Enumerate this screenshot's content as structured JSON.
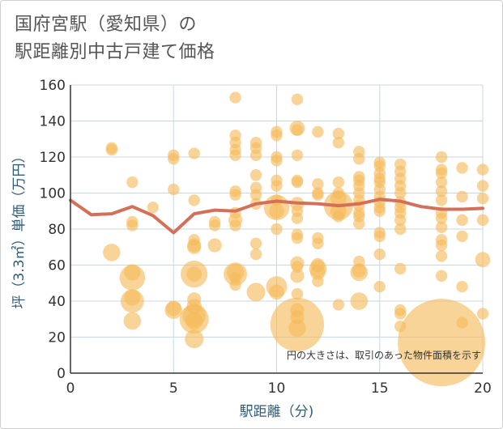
{
  "chart_data": {
    "type": "scatter",
    "title_line1": "国府宮駅（愛知県）の",
    "title_line2": "駅距離別中古戸建て価格",
    "xlabel": "駅距離（分)",
    "ylabel": "坪（3.3㎡）単価（万円）",
    "xlim": [
      0,
      20
    ],
    "ylim": [
      0,
      160
    ],
    "x_ticks": [
      0,
      5,
      10,
      15,
      20
    ],
    "y_ticks": [
      0,
      20,
      40,
      60,
      80,
      100,
      120,
      140,
      160
    ],
    "annotation": "円の大きさは、取引のあった物件面積を示す",
    "colors": {
      "bubble": "#f5b95a",
      "line": "#d4705a",
      "grid": "#c8d8e4",
      "plot_bg": "#ffffff"
    },
    "scatter_points": [
      {
        "x": 2,
        "y": 125,
        "s": 1
      },
      {
        "x": 2,
        "y": 124,
        "s": 1
      },
      {
        "x": 2,
        "y": 67,
        "s": 1.5
      },
      {
        "x": 3,
        "y": 106,
        "s": 1
      },
      {
        "x": 3,
        "y": 84,
        "s": 1
      },
      {
        "x": 3,
        "y": 82,
        "s": 1
      },
      {
        "x": 3,
        "y": 56,
        "s": 1.4
      },
      {
        "x": 3,
        "y": 53,
        "s": 2.2
      },
      {
        "x": 3,
        "y": 42,
        "s": 1.4
      },
      {
        "x": 3,
        "y": 40,
        "s": 2
      },
      {
        "x": 3,
        "y": 29,
        "s": 1.5
      },
      {
        "x": 4,
        "y": 92,
        "s": 1
      },
      {
        "x": 5,
        "y": 121,
        "s": 1
      },
      {
        "x": 5,
        "y": 119,
        "s": 1
      },
      {
        "x": 5,
        "y": 102,
        "s": 1
      },
      {
        "x": 5,
        "y": 36,
        "s": 1.3
      },
      {
        "x": 5,
        "y": 35,
        "s": 1.5
      },
      {
        "x": 6,
        "y": 122,
        "s": 1
      },
      {
        "x": 6,
        "y": 96,
        "s": 1
      },
      {
        "x": 6,
        "y": 74,
        "s": 1
      },
      {
        "x": 6,
        "y": 71,
        "s": 1.2
      },
      {
        "x": 6,
        "y": 70,
        "s": 1.2
      },
      {
        "x": 6,
        "y": 55,
        "s": 2.3
      },
      {
        "x": 6,
        "y": 55,
        "s": 1.3
      },
      {
        "x": 6,
        "y": 41,
        "s": 1.2
      },
      {
        "x": 6,
        "y": 37,
        "s": 1.3
      },
      {
        "x": 6,
        "y": 32,
        "s": 2
      },
      {
        "x": 6,
        "y": 30,
        "s": 2.5
      },
      {
        "x": 6,
        "y": 29,
        "s": 1.5
      },
      {
        "x": 6,
        "y": 19,
        "s": 1.6
      },
      {
        "x": 7,
        "y": 84,
        "s": 1
      },
      {
        "x": 7,
        "y": 82,
        "s": 1
      },
      {
        "x": 7,
        "y": 71,
        "s": 1.2
      },
      {
        "x": 8,
        "y": 153,
        "s": 1
      },
      {
        "x": 8,
        "y": 132,
        "s": 1
      },
      {
        "x": 8,
        "y": 128,
        "s": 1
      },
      {
        "x": 8,
        "y": 124,
        "s": 1
      },
      {
        "x": 8,
        "y": 121,
        "s": 1
      },
      {
        "x": 8,
        "y": 101,
        "s": 1
      },
      {
        "x": 8,
        "y": 99,
        "s": 1
      },
      {
        "x": 8,
        "y": 89,
        "s": 1
      },
      {
        "x": 8,
        "y": 85,
        "s": 1.2
      },
      {
        "x": 8,
        "y": 82,
        "s": 1
      },
      {
        "x": 8,
        "y": 56,
        "s": 1.5
      },
      {
        "x": 8,
        "y": 55,
        "s": 2
      },
      {
        "x": 8,
        "y": 53,
        "s": 1
      },
      {
        "x": 8,
        "y": 49,
        "s": 1
      },
      {
        "x": 9,
        "y": 128,
        "s": 1
      },
      {
        "x": 9,
        "y": 125,
        "s": 1
      },
      {
        "x": 9,
        "y": 121,
        "s": 1
      },
      {
        "x": 9,
        "y": 110,
        "s": 1
      },
      {
        "x": 9,
        "y": 103,
        "s": 1
      },
      {
        "x": 9,
        "y": 99,
        "s": 1
      },
      {
        "x": 9,
        "y": 94,
        "s": 1
      },
      {
        "x": 9,
        "y": 72,
        "s": 1
      },
      {
        "x": 9,
        "y": 66,
        "s": 1
      },
      {
        "x": 9,
        "y": 45,
        "s": 1.6
      },
      {
        "x": 10,
        "y": 134,
        "s": 1
      },
      {
        "x": 10,
        "y": 132,
        "s": 1
      },
      {
        "x": 10,
        "y": 120,
        "s": 1
      },
      {
        "x": 10,
        "y": 118,
        "s": 1
      },
      {
        "x": 10,
        "y": 107,
        "s": 1
      },
      {
        "x": 10,
        "y": 104,
        "s": 1
      },
      {
        "x": 10,
        "y": 96,
        "s": 1
      },
      {
        "x": 10,
        "y": 92,
        "s": 2.2
      },
      {
        "x": 10,
        "y": 90,
        "s": 1.3
      },
      {
        "x": 10,
        "y": 80,
        "s": 1
      },
      {
        "x": 10,
        "y": 48,
        "s": 1.8
      },
      {
        "x": 10,
        "y": 45,
        "s": 1.3
      },
      {
        "x": 11,
        "y": 152,
        "s": 1
      },
      {
        "x": 11,
        "y": 136,
        "s": 1.3
      },
      {
        "x": 11,
        "y": 135,
        "s": 1
      },
      {
        "x": 11,
        "y": 121,
        "s": 1
      },
      {
        "x": 11,
        "y": 107,
        "s": 1
      },
      {
        "x": 11,
        "y": 106,
        "s": 1
      },
      {
        "x": 11,
        "y": 94,
        "s": 1.2
      },
      {
        "x": 11,
        "y": 90,
        "s": 1
      },
      {
        "x": 11,
        "y": 86,
        "s": 1
      },
      {
        "x": 11,
        "y": 77,
        "s": 1
      },
      {
        "x": 11,
        "y": 75,
        "s": 1
      },
      {
        "x": 11,
        "y": 61,
        "s": 1.2
      },
      {
        "x": 11,
        "y": 59,
        "s": 1
      },
      {
        "x": 11,
        "y": 54,
        "s": 1.2
      },
      {
        "x": 11,
        "y": 44,
        "s": 1
      },
      {
        "x": 11,
        "y": 35,
        "s": 1.2
      },
      {
        "x": 11,
        "y": 31,
        "s": 1.2
      },
      {
        "x": 11,
        "y": 27,
        "s": 4.6
      },
      {
        "x": 11,
        "y": 25,
        "s": 1.5
      },
      {
        "x": 12,
        "y": 134,
        "s": 1
      },
      {
        "x": 12,
        "y": 105,
        "s": 1
      },
      {
        "x": 12,
        "y": 100,
        "s": 1
      },
      {
        "x": 12,
        "y": 99,
        "s": 1
      },
      {
        "x": 12,
        "y": 75,
        "s": 1
      },
      {
        "x": 12,
        "y": 72,
        "s": 1
      },
      {
        "x": 12,
        "y": 60,
        "s": 1.2
      },
      {
        "x": 12,
        "y": 58,
        "s": 1.5
      },
      {
        "x": 12,
        "y": 56,
        "s": 1.3
      },
      {
        "x": 12,
        "y": 51,
        "s": 1
      },
      {
        "x": 13,
        "y": 133,
        "s": 1
      },
      {
        "x": 13,
        "y": 128,
        "s": 1
      },
      {
        "x": 13,
        "y": 106,
        "s": 1
      },
      {
        "x": 13,
        "y": 100,
        "s": 1
      },
      {
        "x": 13,
        "y": 97,
        "s": 1.4
      },
      {
        "x": 13,
        "y": 93,
        "s": 2.5
      },
      {
        "x": 13,
        "y": 90,
        "s": 1.4
      },
      {
        "x": 13,
        "y": 87,
        "s": 1
      },
      {
        "x": 13,
        "y": 38,
        "s": 1
      },
      {
        "x": 14,
        "y": 123,
        "s": 1
      },
      {
        "x": 14,
        "y": 119,
        "s": 1
      },
      {
        "x": 14,
        "y": 109,
        "s": 1
      },
      {
        "x": 14,
        "y": 107,
        "s": 1
      },
      {
        "x": 14,
        "y": 104,
        "s": 1
      },
      {
        "x": 14,
        "y": 100,
        "s": 1
      },
      {
        "x": 14,
        "y": 96,
        "s": 1
      },
      {
        "x": 14,
        "y": 93,
        "s": 1
      },
      {
        "x": 14,
        "y": 89,
        "s": 1
      },
      {
        "x": 14,
        "y": 87,
        "s": 1
      },
      {
        "x": 14,
        "y": 83,
        "s": 1
      },
      {
        "x": 14,
        "y": 62,
        "s": 1
      },
      {
        "x": 14,
        "y": 57,
        "s": 1.2
      },
      {
        "x": 14,
        "y": 56,
        "s": 1.5
      },
      {
        "x": 14,
        "y": 40,
        "s": 1.5
      },
      {
        "x": 15,
        "y": 117,
        "s": 1
      },
      {
        "x": 15,
        "y": 115,
        "s": 1
      },
      {
        "x": 15,
        "y": 111,
        "s": 1
      },
      {
        "x": 15,
        "y": 108,
        "s": 1
      },
      {
        "x": 15,
        "y": 106,
        "s": 1
      },
      {
        "x": 15,
        "y": 102,
        "s": 1
      },
      {
        "x": 15,
        "y": 98,
        "s": 1
      },
      {
        "x": 15,
        "y": 95,
        "s": 1
      },
      {
        "x": 15,
        "y": 92,
        "s": 1
      },
      {
        "x": 15,
        "y": 90,
        "s": 1
      },
      {
        "x": 15,
        "y": 78,
        "s": 1
      },
      {
        "x": 15,
        "y": 76,
        "s": 1
      },
      {
        "x": 15,
        "y": 66,
        "s": 1
      },
      {
        "x": 15,
        "y": 48,
        "s": 1
      },
      {
        "x": 16,
        "y": 116,
        "s": 1
      },
      {
        "x": 16,
        "y": 112,
        "s": 1
      },
      {
        "x": 16,
        "y": 108,
        "s": 1
      },
      {
        "x": 16,
        "y": 104,
        "s": 1
      },
      {
        "x": 16,
        "y": 100,
        "s": 1
      },
      {
        "x": 16,
        "y": 95,
        "s": 1
      },
      {
        "x": 16,
        "y": 92,
        "s": 1
      },
      {
        "x": 16,
        "y": 89,
        "s": 1
      },
      {
        "x": 16,
        "y": 85,
        "s": 1
      },
      {
        "x": 16,
        "y": 80,
        "s": 1
      },
      {
        "x": 16,
        "y": 58,
        "s": 1
      },
      {
        "x": 16,
        "y": 35,
        "s": 1
      },
      {
        "x": 16,
        "y": 33,
        "s": 1
      },
      {
        "x": 16,
        "y": 26,
        "s": 1
      },
      {
        "x": 18,
        "y": 120,
        "s": 1
      },
      {
        "x": 18,
        "y": 113,
        "s": 1
      },
      {
        "x": 18,
        "y": 111,
        "s": 1
      },
      {
        "x": 18,
        "y": 106,
        "s": 1
      },
      {
        "x": 18,
        "y": 101,
        "s": 1
      },
      {
        "x": 18,
        "y": 96,
        "s": 1
      },
      {
        "x": 18,
        "y": 89,
        "s": 1
      },
      {
        "x": 18,
        "y": 86,
        "s": 1
      },
      {
        "x": 18,
        "y": 81,
        "s": 1
      },
      {
        "x": 18,
        "y": 74,
        "s": 1
      },
      {
        "x": 18,
        "y": 71,
        "s": 1
      },
      {
        "x": 18,
        "y": 65,
        "s": 1
      },
      {
        "x": 18,
        "y": 54,
        "s": 1
      },
      {
        "x": 18,
        "y": 17,
        "s": 7.5
      },
      {
        "x": 19,
        "y": 114,
        "s": 1
      },
      {
        "x": 19,
        "y": 98,
        "s": 1
      },
      {
        "x": 19,
        "y": 85,
        "s": 1
      },
      {
        "x": 19,
        "y": 76,
        "s": 1
      },
      {
        "x": 19,
        "y": 48,
        "s": 1
      },
      {
        "x": 19,
        "y": 28,
        "s": 1
      },
      {
        "x": 20,
        "y": 113,
        "s": 1
      },
      {
        "x": 20,
        "y": 104,
        "s": 1
      },
      {
        "x": 20,
        "y": 97,
        "s": 1
      },
      {
        "x": 20,
        "y": 85,
        "s": 1
      },
      {
        "x": 20,
        "y": 63,
        "s": 1.3
      },
      {
        "x": 20,
        "y": 33,
        "s": 1
      }
    ],
    "average_line": {
      "x": [
        0,
        1,
        2,
        3,
        4,
        5,
        6,
        7,
        8,
        9,
        10,
        11,
        12,
        13,
        14,
        15,
        16,
        17,
        18,
        19,
        20
      ],
      "y": [
        96,
        88,
        88.5,
        92.5,
        87.5,
        78,
        88.5,
        90.5,
        90,
        94,
        95.5,
        94.5,
        94,
        93,
        94,
        96.5,
        95.5,
        92.5,
        91,
        91,
        91.5
      ]
    }
  }
}
